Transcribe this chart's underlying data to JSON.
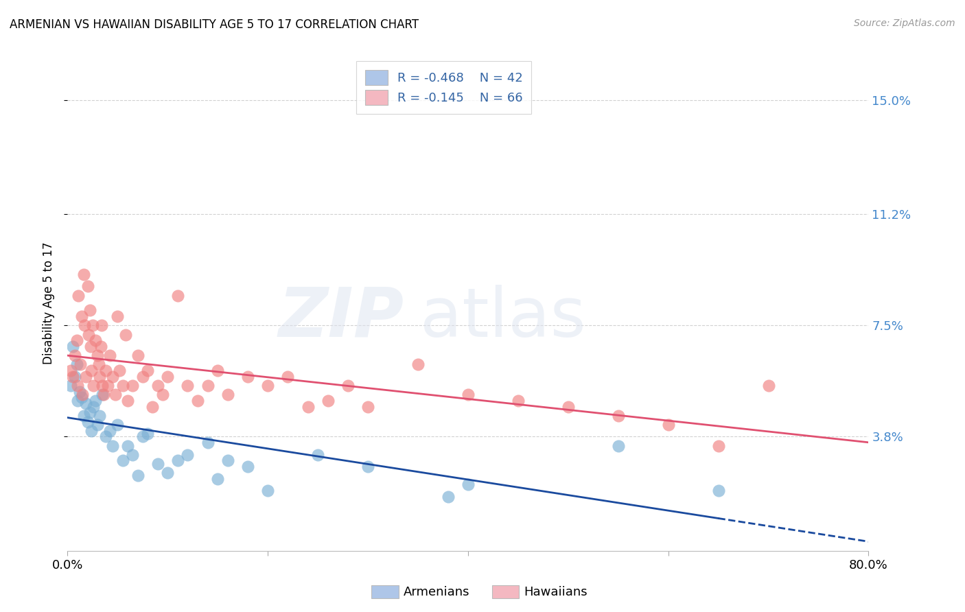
{
  "title": "ARMENIAN VS HAWAIIAN DISABILITY AGE 5 TO 17 CORRELATION CHART",
  "source": "Source: ZipAtlas.com",
  "ylabel": "Disability Age 5 to 17",
  "xlim": [
    0.0,
    80.0
  ],
  "ylim": [
    0.0,
    16.5
  ],
  "ytick_right_values": [
    3.8,
    7.5,
    11.2,
    15.0
  ],
  "ytick_right_labels": [
    "3.8%",
    "7.5%",
    "11.2%",
    "15.0%"
  ],
  "legend_line1": "R = -0.468    N = 42",
  "legend_line2": "R = -0.145    N = 66",
  "legend_color1": "#aec6e8",
  "legend_color2": "#f4b8c1",
  "legend_text_color": "#3465a4",
  "armenian_color": "#7aafd4",
  "hawaiian_color": "#f08080",
  "armenian_line_color": "#1a4a9e",
  "hawaiian_line_color": "#e05070",
  "background_color": "#ffffff",
  "grid_color": "#cccccc",
  "watermark_zip_color": "#d0d8e8",
  "watermark_atlas_color": "#d0d8e8",
  "bottom_legend_label1": "Armenians",
  "bottom_legend_label2": "Hawaiians",
  "armenian_scatter": [
    [
      0.3,
      5.5
    ],
    [
      0.5,
      6.8
    ],
    [
      0.7,
      5.8
    ],
    [
      0.9,
      6.2
    ],
    [
      1.0,
      5.0
    ],
    [
      1.2,
      5.3
    ],
    [
      1.4,
      5.1
    ],
    [
      1.6,
      4.5
    ],
    [
      1.8,
      4.9
    ],
    [
      2.0,
      4.3
    ],
    [
      2.2,
      4.6
    ],
    [
      2.4,
      4.0
    ],
    [
      2.6,
      4.8
    ],
    [
      2.8,
      5.0
    ],
    [
      3.0,
      4.2
    ],
    [
      3.2,
      4.5
    ],
    [
      3.5,
      5.2
    ],
    [
      3.8,
      3.8
    ],
    [
      4.2,
      4.0
    ],
    [
      4.5,
      3.5
    ],
    [
      5.0,
      4.2
    ],
    [
      5.5,
      3.0
    ],
    [
      6.0,
      3.5
    ],
    [
      6.5,
      3.2
    ],
    [
      7.0,
      2.5
    ],
    [
      7.5,
      3.8
    ],
    [
      8.0,
      3.9
    ],
    [
      9.0,
      2.9
    ],
    [
      10.0,
      2.6
    ],
    [
      11.0,
      3.0
    ],
    [
      12.0,
      3.2
    ],
    [
      14.0,
      3.6
    ],
    [
      15.0,
      2.4
    ],
    [
      16.0,
      3.0
    ],
    [
      18.0,
      2.8
    ],
    [
      20.0,
      2.0
    ],
    [
      25.0,
      3.2
    ],
    [
      30.0,
      2.8
    ],
    [
      38.0,
      1.8
    ],
    [
      40.0,
      2.2
    ],
    [
      55.0,
      3.5
    ],
    [
      65.0,
      2.0
    ]
  ],
  "hawaiian_scatter": [
    [
      0.3,
      6.0
    ],
    [
      0.5,
      5.8
    ],
    [
      0.7,
      6.5
    ],
    [
      0.9,
      7.0
    ],
    [
      1.0,
      5.5
    ],
    [
      1.1,
      8.5
    ],
    [
      1.3,
      6.2
    ],
    [
      1.4,
      7.8
    ],
    [
      1.5,
      5.2
    ],
    [
      1.6,
      9.2
    ],
    [
      1.7,
      7.5
    ],
    [
      1.8,
      5.8
    ],
    [
      2.0,
      8.8
    ],
    [
      2.1,
      7.2
    ],
    [
      2.2,
      8.0
    ],
    [
      2.3,
      6.8
    ],
    [
      2.4,
      6.0
    ],
    [
      2.5,
      7.5
    ],
    [
      2.6,
      5.5
    ],
    [
      2.8,
      7.0
    ],
    [
      3.0,
      6.5
    ],
    [
      3.1,
      6.2
    ],
    [
      3.2,
      5.8
    ],
    [
      3.3,
      6.8
    ],
    [
      3.4,
      7.5
    ],
    [
      3.5,
      5.5
    ],
    [
      3.6,
      5.2
    ],
    [
      3.8,
      6.0
    ],
    [
      4.0,
      5.5
    ],
    [
      4.2,
      6.5
    ],
    [
      4.5,
      5.8
    ],
    [
      4.8,
      5.2
    ],
    [
      5.0,
      7.8
    ],
    [
      5.2,
      6.0
    ],
    [
      5.5,
      5.5
    ],
    [
      5.8,
      7.2
    ],
    [
      6.0,
      5.0
    ],
    [
      6.5,
      5.5
    ],
    [
      7.0,
      6.5
    ],
    [
      7.5,
      5.8
    ],
    [
      8.0,
      6.0
    ],
    [
      8.5,
      4.8
    ],
    [
      9.0,
      5.5
    ],
    [
      9.5,
      5.2
    ],
    [
      10.0,
      5.8
    ],
    [
      11.0,
      8.5
    ],
    [
      12.0,
      5.5
    ],
    [
      13.0,
      5.0
    ],
    [
      14.0,
      5.5
    ],
    [
      15.0,
      6.0
    ],
    [
      16.0,
      5.2
    ],
    [
      18.0,
      5.8
    ],
    [
      20.0,
      5.5
    ],
    [
      22.0,
      5.8
    ],
    [
      24.0,
      4.8
    ],
    [
      26.0,
      5.0
    ],
    [
      28.0,
      5.5
    ],
    [
      30.0,
      4.8
    ],
    [
      35.0,
      6.2
    ],
    [
      40.0,
      5.2
    ],
    [
      45.0,
      5.0
    ],
    [
      50.0,
      4.8
    ],
    [
      55.0,
      4.5
    ],
    [
      60.0,
      4.2
    ],
    [
      65.0,
      3.5
    ],
    [
      70.0,
      5.5
    ]
  ]
}
